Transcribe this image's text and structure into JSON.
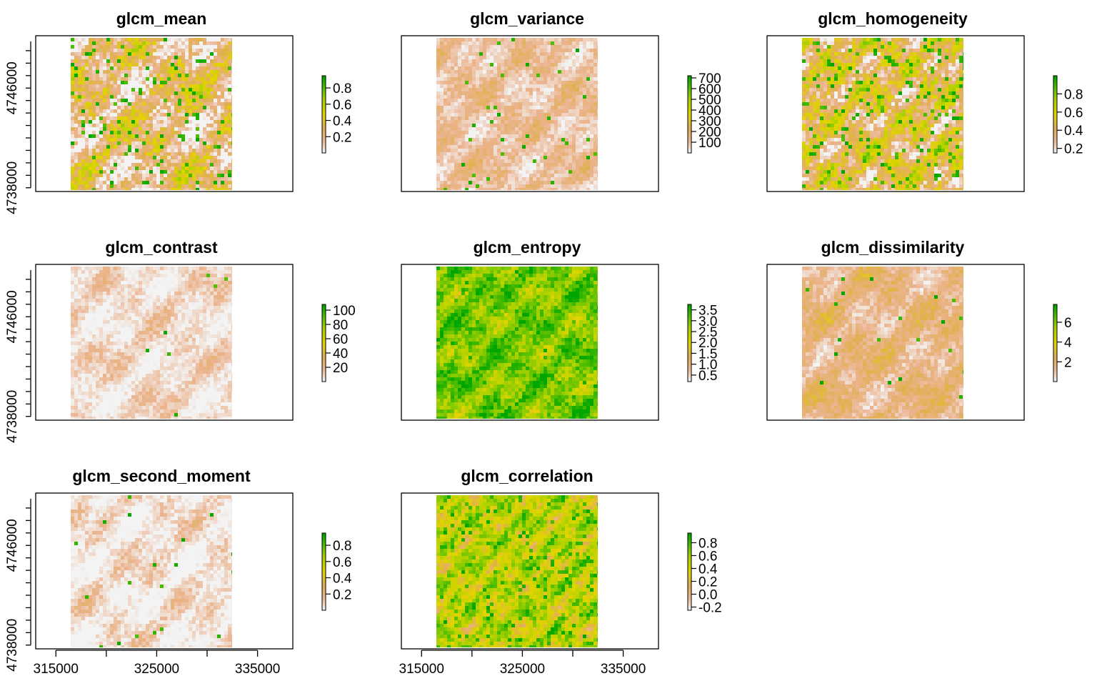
{
  "figure": {
    "layout": {
      "rows": 3,
      "cols": 3
    },
    "palette": [
      "#f3f3f3",
      "#ebb48f",
      "#e0b050",
      "#e3d400",
      "#b3d200",
      "#61c200",
      "#00a600"
    ]
  },
  "chart_data": [
    {
      "type": "heatmap",
      "title": "glcm_mean",
      "xlim": [
        313000,
        338500
      ],
      "ylim": [
        4737700,
        4750200
      ],
      "x_ticks": [
        315000,
        320000,
        325000,
        330000,
        335000
      ],
      "x_tick_labels": [
        "315000",
        "",
        "325000",
        "",
        "335000"
      ],
      "show_x_labels": false,
      "y_ticks": [
        4738000,
        4742000,
        4746000,
        4748000
      ],
      "y_tick_labels": [
        "4738000",
        "",
        "4746000",
        ""
      ],
      "show_y_labels": true,
      "raster_extent": {
        "x": [
          316500,
          332500
        ],
        "y": [
          4737800,
          4750000
        ]
      },
      "value_range": [
        0,
        0.95
      ],
      "legend": {
        "ticks": [
          0.2,
          0.4,
          0.6,
          0.8
        ],
        "labels": [
          "0.2",
          "0.4",
          "0.6",
          "0.8"
        ]
      },
      "texture": {
        "base": 0.22,
        "amp": 0.45,
        "freq": 0.9,
        "sparkle": 0.06
      }
    },
    {
      "type": "heatmap",
      "title": "glcm_variance",
      "xlim": [
        313000,
        338500
      ],
      "ylim": [
        4737700,
        4750200
      ],
      "x_ticks": [
        315000,
        320000,
        325000,
        330000,
        335000
      ],
      "x_tick_labels": [
        "315000",
        "",
        "325000",
        "",
        "335000"
      ],
      "show_x_labels": false,
      "y_ticks": [],
      "y_tick_labels": [],
      "show_y_labels": false,
      "raster_extent": {
        "x": [
          316500,
          332500
        ],
        "y": [
          4737800,
          4750000
        ]
      },
      "value_range": [
        0,
        720
      ],
      "legend": {
        "ticks": [
          100,
          200,
          300,
          400,
          500,
          600,
          700
        ],
        "labels": [
          "100",
          "200",
          "300",
          "400",
          "500",
          "600",
          "700"
        ]
      },
      "texture": {
        "base": 0.14,
        "amp": 0.18,
        "freq": 1.1,
        "sparkle": 0.02
      }
    },
    {
      "type": "heatmap",
      "title": "glcm_homogeneity",
      "xlim": [
        313000,
        338500
      ],
      "ylim": [
        4737700,
        4750200
      ],
      "x_ticks": [
        315000,
        320000,
        325000,
        330000,
        335000
      ],
      "x_tick_labels": [
        "315000",
        "",
        "325000",
        "",
        "335000"
      ],
      "show_x_labels": false,
      "y_ticks": [],
      "y_tick_labels": [],
      "show_y_labels": false,
      "raster_extent": {
        "x": [
          316500,
          332500
        ],
        "y": [
          4737800,
          4750000
        ]
      },
      "value_range": [
        0.15,
        1.0
      ],
      "legend": {
        "ticks": [
          0.2,
          0.4,
          0.6,
          0.8
        ],
        "labels": [
          "0.2",
          "0.4",
          "0.6",
          "0.8"
        ]
      },
      "texture": {
        "base": 0.33,
        "amp": 0.45,
        "freq": 1.4,
        "sparkle": 0.1
      }
    },
    {
      "type": "heatmap",
      "title": "glcm_contrast",
      "xlim": [
        313000,
        338500
      ],
      "ylim": [
        4737700,
        4750200
      ],
      "x_ticks": [
        315000,
        320000,
        325000,
        330000,
        335000
      ],
      "x_tick_labels": [
        "315000",
        "",
        "325000",
        "",
        "335000"
      ],
      "show_x_labels": false,
      "y_ticks": [
        4738000,
        4742000,
        4746000,
        4748000
      ],
      "y_tick_labels": [
        "4738000",
        "",
        "4746000",
        ""
      ],
      "show_y_labels": true,
      "raster_extent": {
        "x": [
          316500,
          332500
        ],
        "y": [
          4737800,
          4750000
        ]
      },
      "value_range": [
        0,
        108
      ],
      "legend": {
        "ticks": [
          20,
          40,
          60,
          80,
          100
        ],
        "labels": [
          "20",
          "40",
          "60",
          "80",
          "100"
        ]
      },
      "texture": {
        "base": 0.06,
        "amp": 0.16,
        "freq": 1.0,
        "sparkle": 0.004
      }
    },
    {
      "type": "heatmap",
      "title": "glcm_entropy",
      "xlim": [
        313000,
        338500
      ],
      "ylim": [
        4737700,
        4750200
      ],
      "x_ticks": [
        315000,
        320000,
        325000,
        330000,
        335000
      ],
      "x_tick_labels": [
        "315000",
        "",
        "325000",
        "",
        "335000"
      ],
      "show_x_labels": false,
      "y_ticks": [],
      "y_tick_labels": [],
      "show_y_labels": false,
      "raster_extent": {
        "x": [
          316500,
          332500
        ],
        "y": [
          4737800,
          4750000
        ]
      },
      "value_range": [
        0.2,
        3.75
      ],
      "legend": {
        "ticks": [
          0.5,
          1.0,
          1.5,
          2.0,
          2.5,
          3.0,
          3.5
        ],
        "labels": [
          "0.5",
          "1.0",
          "1.5",
          "2.0",
          "2.5",
          "3.0",
          "3.5"
        ]
      },
      "texture": {
        "base": 0.78,
        "amp": 0.3,
        "freq": 1.3,
        "sparkle": 0.04
      }
    },
    {
      "type": "heatmap",
      "title": "glcm_dissimilarity",
      "xlim": [
        313000,
        338500
      ],
      "ylim": [
        4737700,
        4750200
      ],
      "x_ticks": [
        315000,
        320000,
        325000,
        330000,
        335000
      ],
      "x_tick_labels": [
        "315000",
        "",
        "325000",
        "",
        "335000"
      ],
      "show_x_labels": false,
      "y_ticks": [],
      "y_tick_labels": [],
      "show_y_labels": false,
      "raster_extent": {
        "x": [
          316500,
          332500
        ],
        "y": [
          4737800,
          4750000
        ]
      },
      "value_range": [
        0,
        7.8
      ],
      "legend": {
        "ticks": [
          2,
          4,
          6
        ],
        "labels": [
          "2",
          "4",
          "6"
        ]
      },
      "texture": {
        "base": 0.2,
        "amp": 0.2,
        "freq": 1.0,
        "sparkle": 0.01
      }
    },
    {
      "type": "heatmap",
      "title": "glcm_second_moment",
      "xlim": [
        313000,
        338500
      ],
      "ylim": [
        4737700,
        4750200
      ],
      "x_ticks": [
        315000,
        320000,
        325000,
        330000,
        335000
      ],
      "x_tick_labels": [
        "315000",
        "",
        "325000",
        "",
        "335000"
      ],
      "show_x_labels": true,
      "y_ticks": [
        4738000,
        4742000,
        4746000,
        4748000
      ],
      "y_tick_labels": [
        "4738000",
        "",
        "4746000",
        ""
      ],
      "show_y_labels": true,
      "raster_extent": {
        "x": [
          316500,
          332500
        ],
        "y": [
          4737800,
          4750000
        ]
      },
      "value_range": [
        0,
        0.95
      ],
      "legend": {
        "ticks": [
          0.2,
          0.4,
          0.6,
          0.8
        ],
        "labels": [
          "0.2",
          "0.4",
          "0.6",
          "0.8"
        ]
      },
      "texture": {
        "base": 0.04,
        "amp": 0.18,
        "freq": 1.0,
        "sparkle": 0.01
      }
    },
    {
      "type": "heatmap",
      "title": "glcm_correlation",
      "xlim": [
        313000,
        338500
      ],
      "ylim": [
        4737700,
        4750200
      ],
      "x_ticks": [
        315000,
        320000,
        325000,
        330000,
        335000
      ],
      "x_tick_labels": [
        "315000",
        "",
        "325000",
        "",
        "335000"
      ],
      "show_x_labels": true,
      "y_ticks": [],
      "y_tick_labels": [],
      "show_y_labels": false,
      "raster_extent": {
        "x": [
          316500,
          332500
        ],
        "y": [
          4737800,
          4750000
        ]
      },
      "value_range": [
        -0.25,
        0.95
      ],
      "legend": {
        "ticks": [
          -0.2,
          0.0,
          0.2,
          0.4,
          0.6,
          0.8
        ],
        "labels": [
          "-0.2",
          "0.0",
          "0.2",
          "0.4",
          "0.6",
          "0.8"
        ]
      },
      "texture": {
        "base": 0.62,
        "amp": 0.36,
        "freq": 1.8,
        "sparkle": 0.08
      }
    }
  ]
}
